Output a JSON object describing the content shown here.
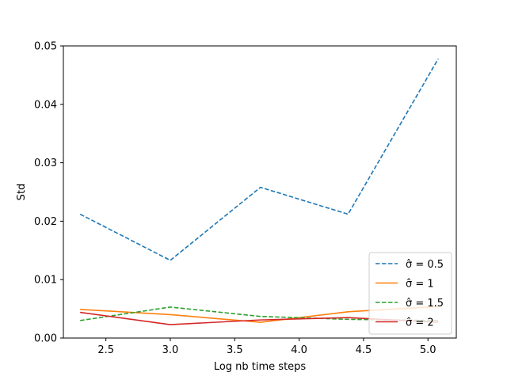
{
  "chart_data": {
    "type": "line",
    "title": "",
    "xlabel": "Log nb time  steps",
    "ylabel": "Std",
    "xlim": [
      2.17,
      5.22
    ],
    "ylim": [
      0,
      0.05
    ],
    "xticks": [
      2.5,
      3.0,
      3.5,
      4.0,
      4.5,
      5.0
    ],
    "xtick_labels": [
      "2.5",
      "3.0",
      "3.5",
      "4.0",
      "4.5",
      "5.0"
    ],
    "yticks": [
      0.0,
      0.01,
      0.02,
      0.03,
      0.04,
      0.05
    ],
    "ytick_labels": [
      "0.00",
      "0.01",
      "0.02",
      "0.03",
      "0.04",
      "0.05"
    ],
    "grid": false,
    "legend_position": "lower-right",
    "x": [
      2.3,
      3.0,
      3.7,
      4.38,
      5.08
    ],
    "series": [
      {
        "name": "σ̂ =  0.5",
        "color": "#1f77b4",
        "dash": true,
        "values": [
          0.0212,
          0.0133,
          0.0258,
          0.0212,
          0.0478
        ]
      },
      {
        "name": "σ̂ =  1",
        "color": "#ff7f0e",
        "dash": false,
        "values": [
          0.0049,
          0.004,
          0.0027,
          0.0045,
          0.0054
        ]
      },
      {
        "name": "σ̂ =  1.5",
        "color": "#2ca02c",
        "dash": true,
        "values": [
          0.003,
          0.0053,
          0.0037,
          0.0032,
          0.003
        ]
      },
      {
        "name": "σ̂ =  2",
        "color": "#d62728",
        "dash": false,
        "values": [
          0.0044,
          0.0023,
          0.0031,
          0.0035,
          0.0027
        ]
      }
    ]
  }
}
